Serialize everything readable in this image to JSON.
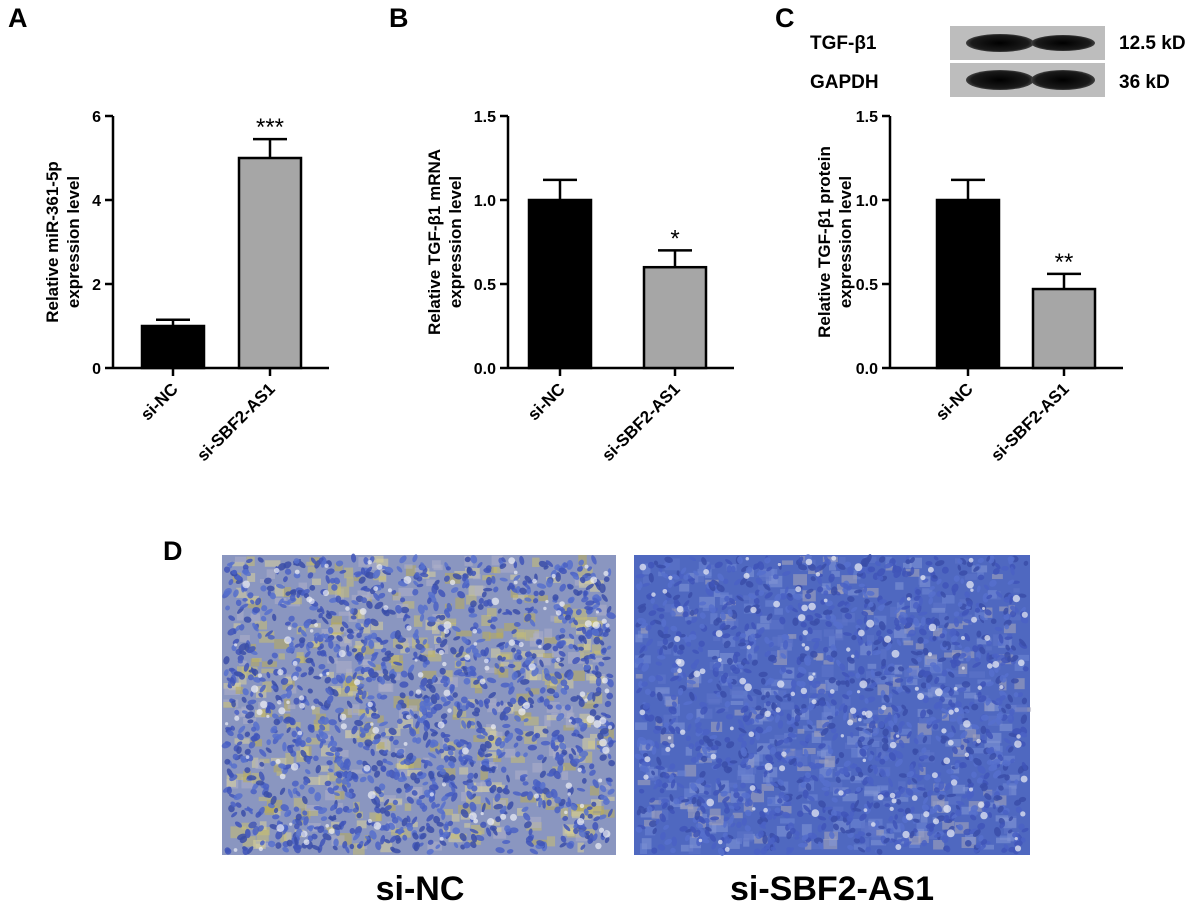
{
  "panels": {
    "A": "A",
    "B": "B",
    "C": "C",
    "D": "D"
  },
  "chart_data": [
    {
      "panel": "A",
      "type": "bar",
      "categories": [
        "si-NC",
        "si-SBF2-AS1"
      ],
      "values": [
        1.0,
        5.0
      ],
      "errors": [
        0.15,
        0.45
      ],
      "significance": [
        "",
        "***"
      ],
      "bar_colors": [
        "#000000",
        "#a6a6a6"
      ],
      "ylabel_lines": [
        "Relative miR-361-5p",
        "expression level"
      ],
      "ylim": [
        0,
        6
      ],
      "yticks": [
        "0",
        "2",
        "4",
        "6"
      ],
      "ytick_values": [
        0,
        2,
        4,
        6
      ]
    },
    {
      "panel": "B",
      "type": "bar",
      "categories": [
        "si-NC",
        "si-SBF2-AS1"
      ],
      "values": [
        1.0,
        0.6
      ],
      "errors": [
        0.12,
        0.1
      ],
      "significance": [
        "",
        "*"
      ],
      "bar_colors": [
        "#000000",
        "#a6a6a6"
      ],
      "ylabel_lines": [
        "Relative TGF-β1 mRNA",
        "expression level"
      ],
      "ylim": [
        0,
        1.5
      ],
      "yticks": [
        "0.0",
        "0.5",
        "1.0",
        "1.5"
      ],
      "ytick_values": [
        0,
        0.5,
        1.0,
        1.5
      ]
    },
    {
      "panel": "C",
      "type": "bar",
      "categories": [
        "si-NC",
        "si-SBF2-AS1"
      ],
      "values": [
        1.0,
        0.47
      ],
      "errors": [
        0.12,
        0.09
      ],
      "significance": [
        "",
        "**"
      ],
      "bar_colors": [
        "#000000",
        "#a6a6a6"
      ],
      "ylabel_lines": [
        "Relative TGF-β1 protein",
        "expression level"
      ],
      "ylim": [
        0,
        1.5
      ],
      "yticks": [
        "0.0",
        "0.5",
        "1.0",
        "1.5"
      ],
      "ytick_values": [
        0,
        0.5,
        1.0,
        1.5
      ]
    }
  ],
  "western_blot": {
    "rows": [
      {
        "protein": "TGF-β1",
        "size": "12.5 kD"
      },
      {
        "protein": "GAPDH",
        "size": "36 kD"
      }
    ]
  },
  "ihc": {
    "images": [
      {
        "caption": "si-NC",
        "stain_level": "high"
      },
      {
        "caption": "si-SBF2-AS1",
        "stain_level": "low"
      }
    ]
  }
}
